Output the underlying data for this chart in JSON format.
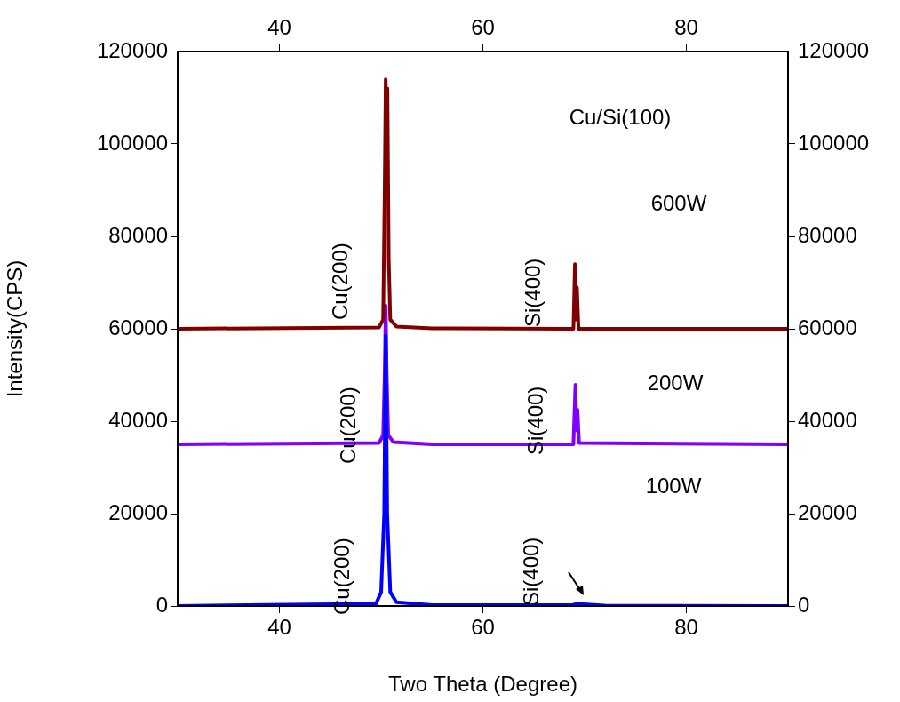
{
  "chart_data": {
    "type": "line",
    "xlabel": "Two Theta (Degree)",
    "ylabel": "Intensity(CPS)",
    "xlim": [
      30,
      90
    ],
    "xticks": [
      40,
      60,
      80
    ],
    "x2lim": [
      30,
      90
    ],
    "x2ticks": [
      40,
      60,
      80
    ],
    "ylim": [
      0,
      120000
    ],
    "yticks": [
      0,
      20000,
      40000,
      60000,
      80000,
      100000,
      120000
    ],
    "y2lim": [
      0,
      120000
    ],
    "y2ticks": [
      0,
      20000,
      40000,
      60000,
      80000,
      100000,
      120000
    ],
    "grid": false,
    "legend": false,
    "marker": "none",
    "line_style": "solid",
    "series": [
      {
        "color": "#800000",
        "x": [
          30,
          49.8,
          50.2,
          50.35,
          50.45,
          50.55,
          50.62,
          50.75,
          50.9,
          51.5,
          55,
          68.9,
          69.05,
          69.15,
          69.25,
          69.4,
          90
        ],
        "values": [
          60000,
          60300,
          62000,
          90000,
          114000,
          100000,
          112000,
          75000,
          62000,
          60500,
          60100,
          60000,
          74000,
          62000,
          69000,
          60000,
          60000
        ]
      },
      {
        "color": "#8000ff",
        "x": [
          30,
          49.8,
          50.2,
          50.35,
          50.45,
          50.55,
          50.7,
          51.2,
          55,
          68.9,
          69.1,
          69.2,
          69.3,
          69.45,
          90
        ],
        "values": [
          35000,
          35300,
          37000,
          50000,
          65000,
          50000,
          37000,
          35500,
          35000,
          35000,
          47900,
          38000,
          42500,
          35300,
          35000
        ]
      },
      {
        "color": "#0000ff",
        "x": [
          30,
          49.5,
          50.0,
          50.3,
          50.45,
          50.6,
          50.9,
          51.5,
          55,
          68.8,
          69.3,
          70.5,
          72,
          90
        ],
        "values": [
          0,
          500,
          3000,
          20000,
          58500,
          20000,
          3000,
          800,
          200,
          200,
          500,
          300,
          100,
          0
        ]
      }
    ],
    "annotations": [
      "Cu/Si(100)",
      "600W",
      "200W",
      "100W",
      "Cu(200)",
      "Cu(200)",
      "Cu(200)",
      "Si(400)",
      "Si(400)",
      "Si(400)"
    ]
  }
}
